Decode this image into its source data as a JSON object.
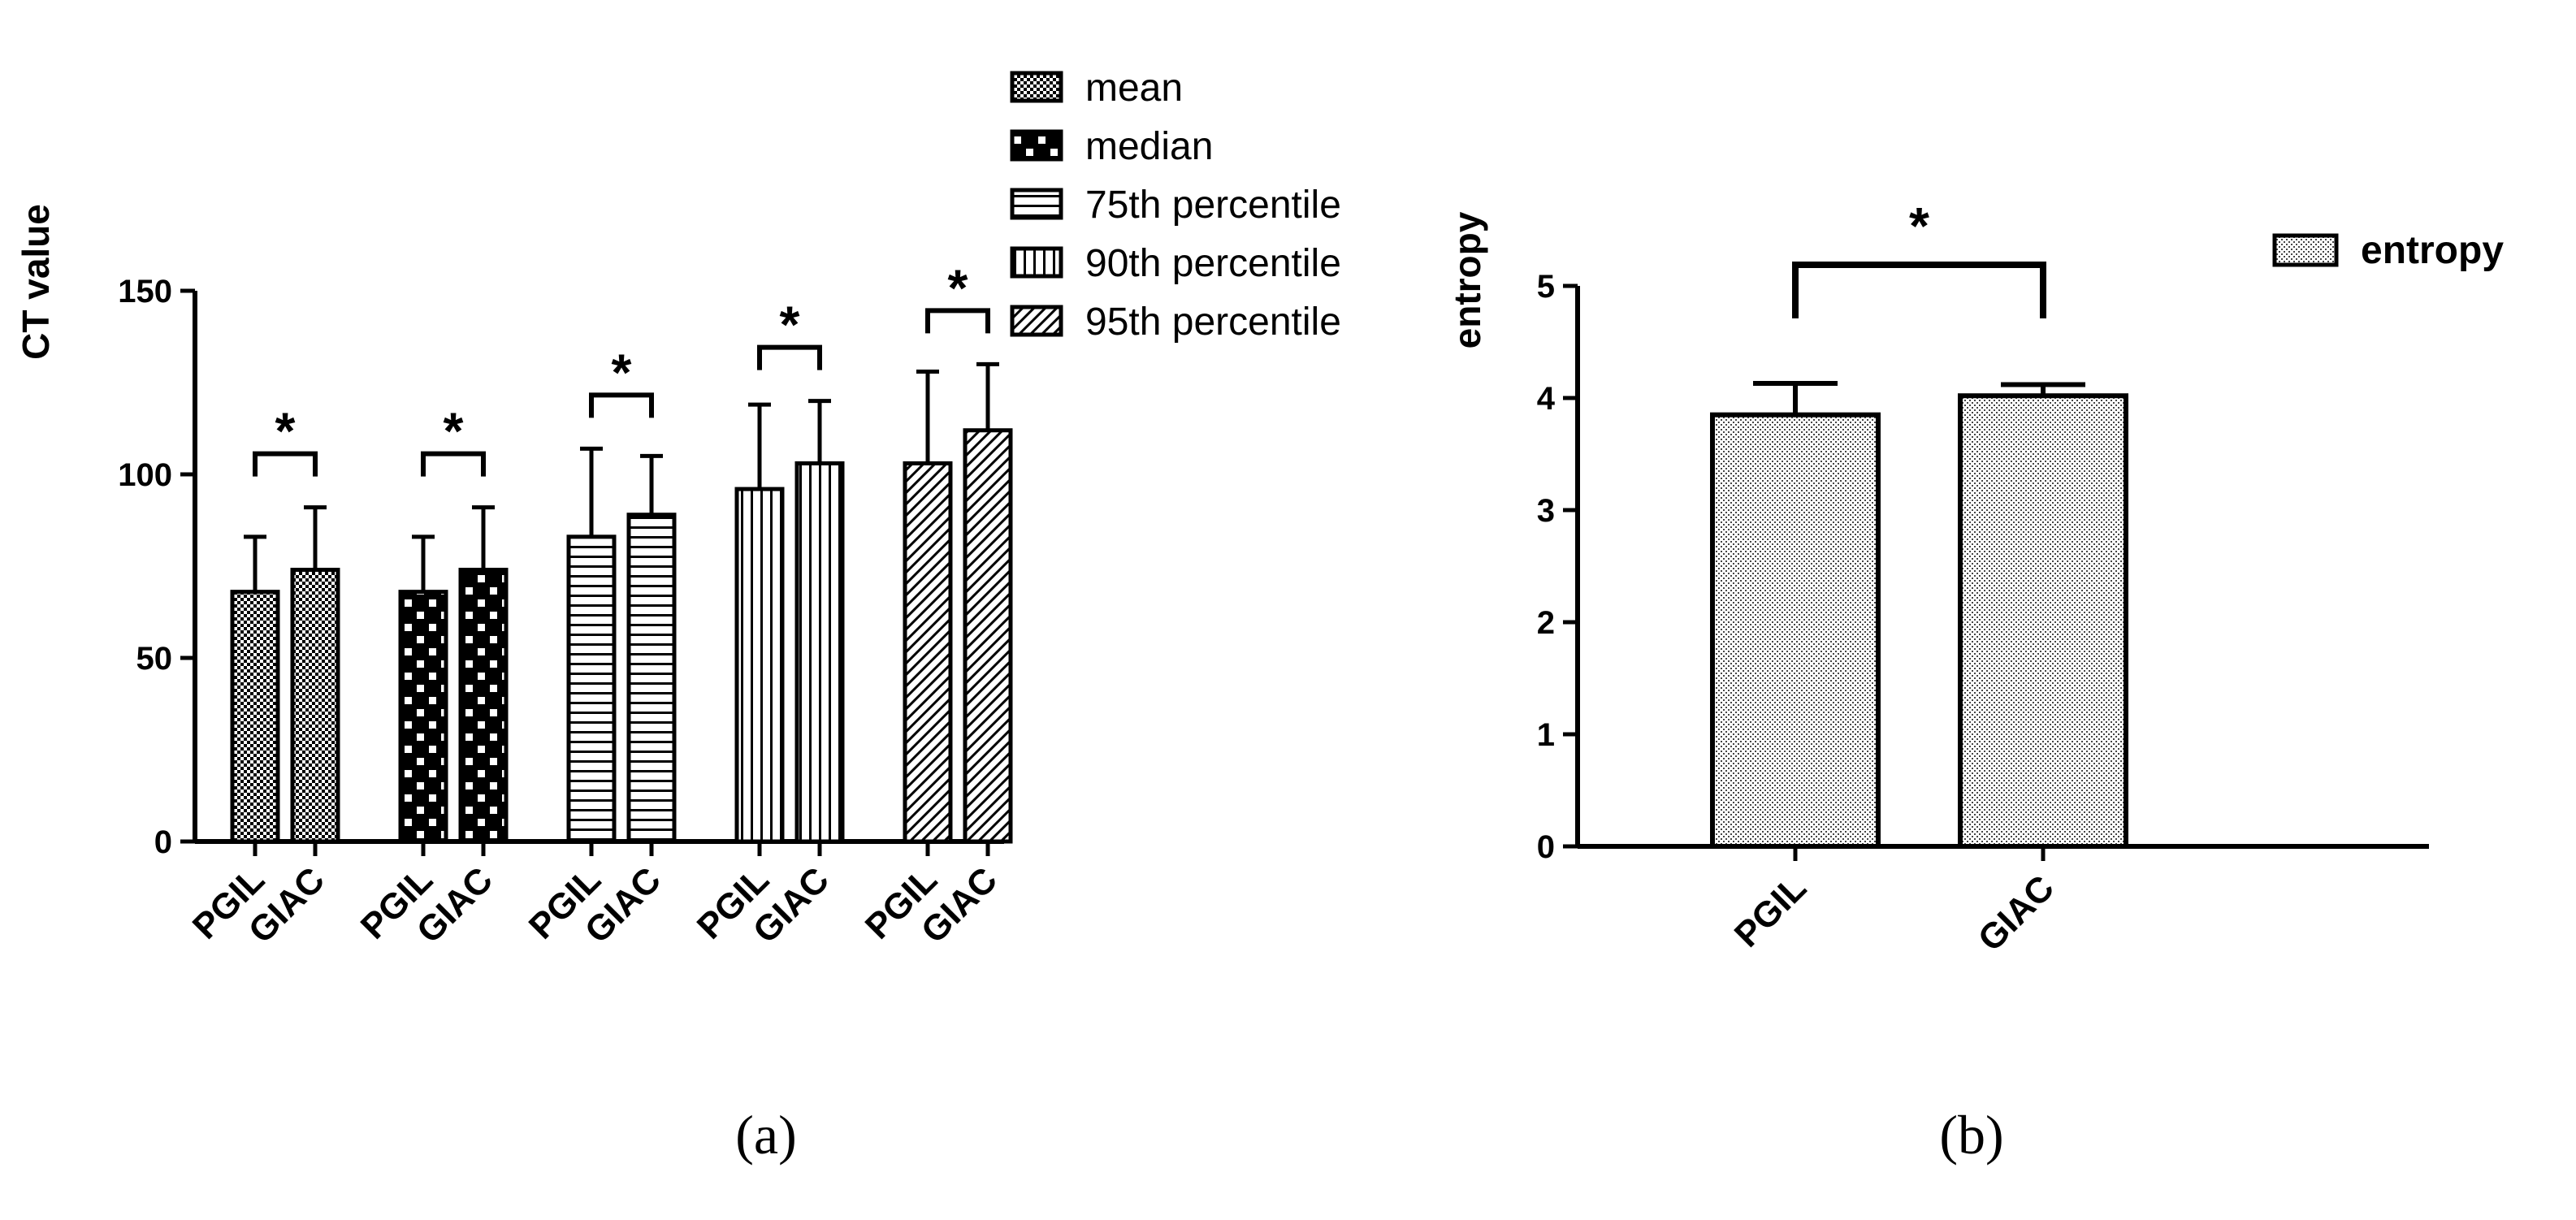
{
  "chart_data": [
    {
      "type": "bar",
      "panel": "a",
      "ylabel": "CT value",
      "ylim": [
        0,
        150
      ],
      "yticks": [
        "0",
        "50",
        "100",
        "150"
      ],
      "groups": [
        {
          "series": "mean",
          "categories": [
            "PGIL",
            "GIAC"
          ],
          "values": [
            68,
            74
          ],
          "errors": [
            15,
            17
          ],
          "significance": "*"
        },
        {
          "series": "median",
          "categories": [
            "PGIL",
            "GIAC"
          ],
          "values": [
            68,
            74
          ],
          "errors": [
            15,
            17
          ],
          "significance": "*"
        },
        {
          "series": "75th percentile",
          "categories": [
            "PGIL",
            "GIAC"
          ],
          "values": [
            83,
            89
          ],
          "errors": [
            24,
            16
          ],
          "significance": "*"
        },
        {
          "series": "90th percentile",
          "categories": [
            "PGIL",
            "GIAC"
          ],
          "values": [
            96,
            103
          ],
          "errors": [
            23,
            17
          ],
          "significance": "*"
        },
        {
          "series": "95th percentile",
          "categories": [
            "PGIL",
            "GIAC"
          ],
          "values": [
            103,
            112
          ],
          "errors": [
            25,
            18
          ],
          "significance": "*"
        }
      ],
      "legend": [
        "mean",
        "median",
        "75th percentile",
        "90th percentile",
        "95th percentile"
      ],
      "legend_position": "top-right"
    },
    {
      "type": "bar",
      "panel": "b",
      "ylabel": "entropy",
      "ylim": [
        0,
        5
      ],
      "yticks": [
        "0",
        "1",
        "2",
        "3",
        "4",
        "5"
      ],
      "categories": [
        "PGIL",
        "GIAC"
      ],
      "values": [
        3.85,
        4.02
      ],
      "errors": [
        0.28,
        0.1
      ],
      "significance": "*",
      "legend": [
        "entropy"
      ],
      "legend_position": "top-right"
    }
  ],
  "captions": {
    "a_open": "(",
    "a_letter": "a",
    "a_close": ")",
    "b_open": "(",
    "b_letter": "b",
    "b_close": ")"
  }
}
